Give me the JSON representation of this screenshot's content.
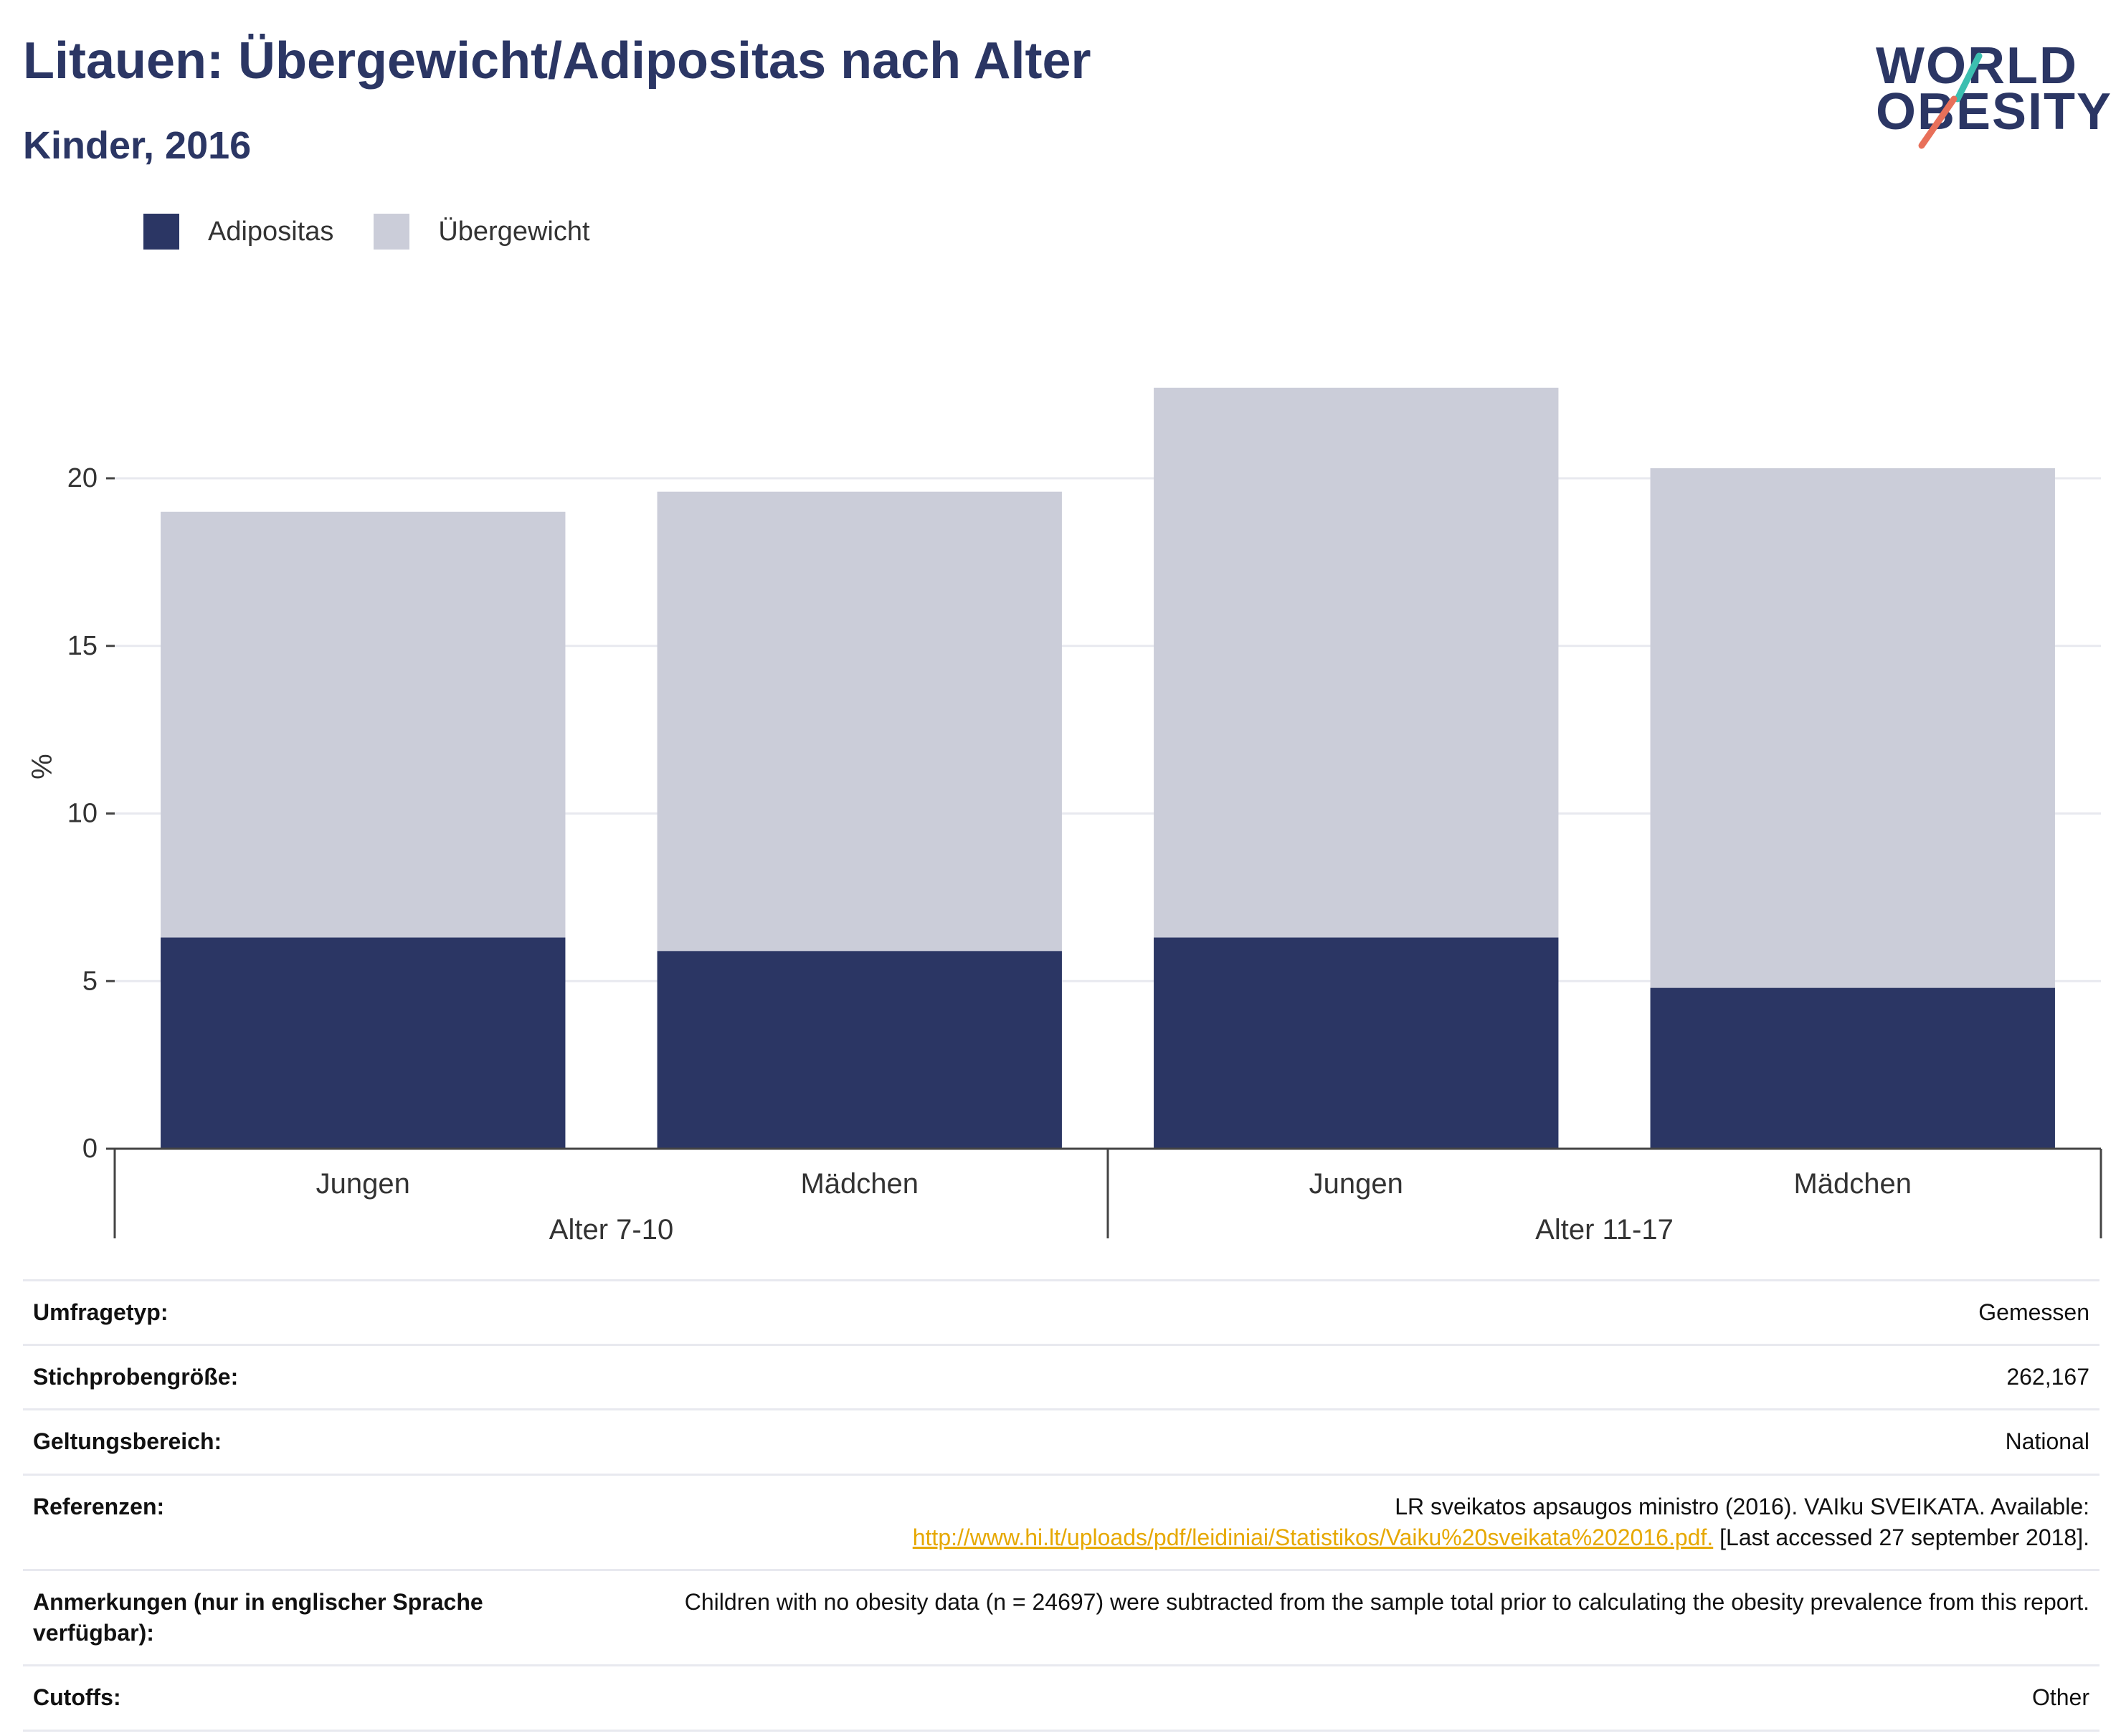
{
  "header": {
    "title": "Litauen: Übergewicht/Adipositas nach Alter",
    "subtitle": "Kinder, 2016"
  },
  "logo": {
    "line1": "WORLD",
    "line2": "OBESITY",
    "colors": {
      "text": "#2b3664",
      "slash_top": "#3cbfb0",
      "slash_bottom": "#e8705a"
    }
  },
  "legend": [
    {
      "label": "Adipositas",
      "color": "#2b3664"
    },
    {
      "label": "Übergewicht",
      "color": "#cbcdd9"
    }
  ],
  "chart_data": {
    "type": "bar",
    "stacked": true,
    "categories": [
      "Jungen",
      "Mädchen",
      "Jungen",
      "Mädchen"
    ],
    "groups": [
      {
        "label": "Alter 7-10",
        "categories": [
          0,
          1
        ]
      },
      {
        "label": "Alter 11-17",
        "categories": [
          2,
          3
        ]
      }
    ],
    "series": [
      {
        "name": "Adipositas",
        "color": "#2b3664",
        "values": [
          6.3,
          5.9,
          6.3,
          4.8
        ]
      },
      {
        "name": "Übergewicht",
        "color": "#cbcdd9",
        "values": [
          12.7,
          13.7,
          16.4,
          15.5
        ]
      }
    ],
    "totals": [
      19.0,
      19.6,
      22.7,
      20.3
    ],
    "ylabel": "%",
    "ylim": [
      0,
      24
    ],
    "yticks": [
      0,
      5,
      10,
      15,
      20
    ],
    "grid": true,
    "legend_position": "top-left"
  },
  "meta": {
    "survey_type": {
      "label": "Umfragetyp:",
      "value": "Gemessen"
    },
    "sample_size": {
      "label": "Stichprobengröße:",
      "value": "262,167"
    },
    "coverage": {
      "label": "Geltungsbereich:",
      "value": "National"
    },
    "references": {
      "label": "Referenzen:",
      "text": "LR sveikatos apsaugos ministro (2016). VAIku SVEIKATA. Available:",
      "link": "http://www.hi.lt/uploads/pdf/leidiniai/Statistikos/Vaiku%20sveikata%202016.pdf.",
      "suffix": " [Last accessed 27 september 2018]."
    },
    "notes": {
      "label": "Anmerkungen (nur in englischer Sprache verfügbar):",
      "value": "Children with no obesity data (n = 24697) were subtracted from the sample total prior to calculating the obesity prevalence from this report."
    },
    "cutoffs": {
      "label": "Cutoffs:",
      "value": "Other"
    }
  }
}
